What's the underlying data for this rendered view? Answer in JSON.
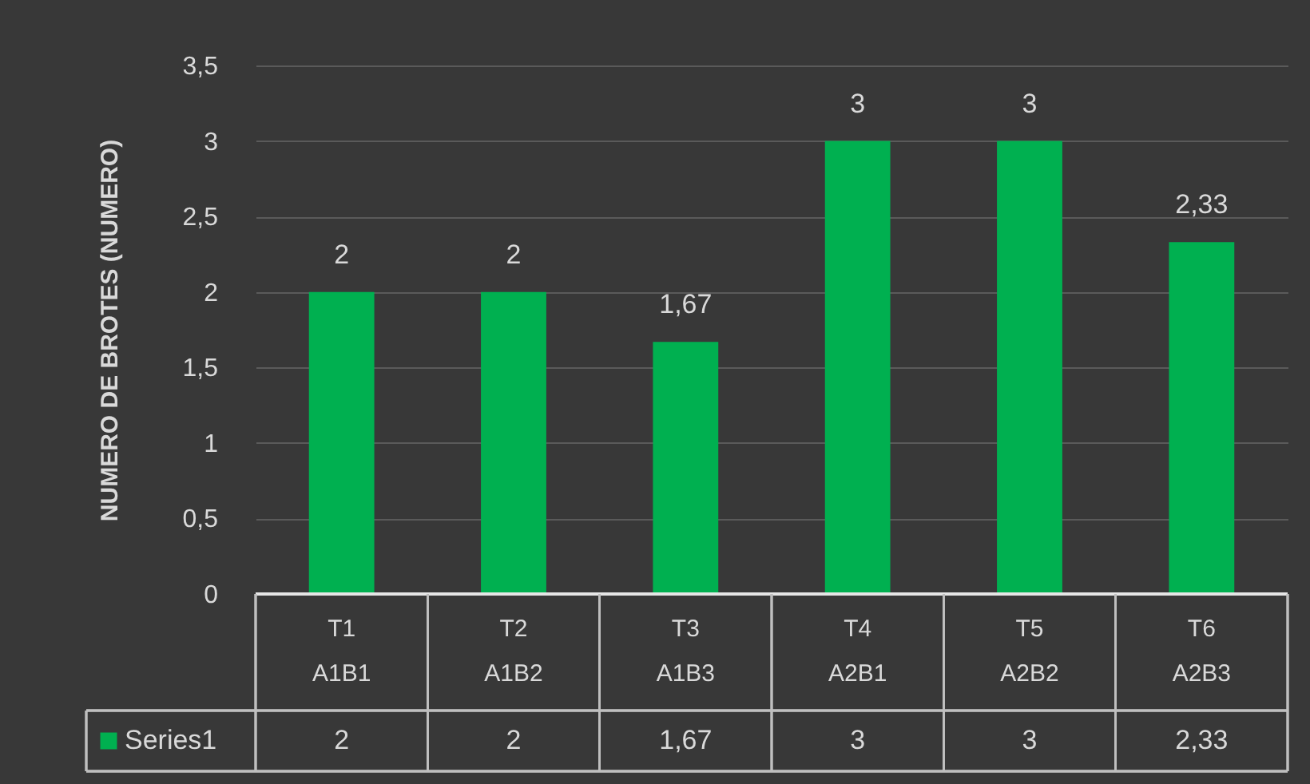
{
  "chart_data": {
    "type": "bar",
    "ylabel": "NUMERO DE BROTES (NUMERO)",
    "categories": [
      "T1\nA1B1",
      "T2\nA1B2",
      "T3\nA1B3",
      "T4\nA2B1",
      "T5\nA2B2",
      "T6\nA2B3"
    ],
    "series": [
      {
        "name": "Series1",
        "color": "#00b050",
        "values": [
          2,
          2,
          1.67,
          3,
          3,
          2.33
        ],
        "value_labels": [
          "2",
          "2",
          "1,67",
          "3",
          "3",
          "2,33"
        ]
      }
    ],
    "ylim": [
      0,
      3.5
    ],
    "yticks": [
      0,
      {
        "value": 0.5,
        "label": "0,5"
      },
      1,
      {
        "value": 1.5,
        "label": "1,5"
      },
      2,
      {
        "value": 2.5,
        "label": "2,5"
      },
      3,
      {
        "value": 3.5,
        "label": "3,5"
      }
    ],
    "grid": "y",
    "legend": "bottom"
  }
}
